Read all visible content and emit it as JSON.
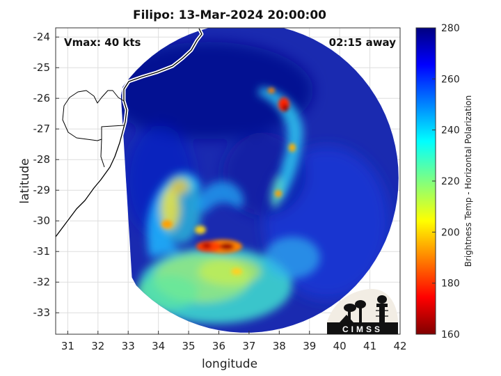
{
  "title": "Filipo: 13-Mar-2024 20:00:00",
  "vmax_label": "Vmax: 40 kts",
  "away_label": "02:15 away",
  "xlabel": "longitude",
  "ylabel": "latitude",
  "colorbar_label": "Brightness Temp - Horizontal Polarization",
  "logo_text": "CIMSS",
  "colors": {
    "frame": "#333333",
    "grid": "#dddddd",
    "coast": "#000000",
    "coast_halo": "#ffffff"
  },
  "chart_data": {
    "type": "heatmap",
    "xlim": [
      30.6,
      42
    ],
    "ylim": [
      -33.7,
      -23.7
    ],
    "x_ticks": [
      31,
      32,
      33,
      34,
      35,
      36,
      37,
      38,
      39,
      40,
      41,
      42
    ],
    "y_ticks": [
      -24,
      -25,
      -26,
      -27,
      -28,
      -29,
      -30,
      -31,
      -32,
      -33
    ],
    "colorbar": {
      "min": 160,
      "max": 280,
      "ticks": [
        160,
        180,
        200,
        220,
        240,
        260,
        280
      ],
      "colormap": "jet-reversed"
    },
    "grid": true,
    "swath": {
      "center_lon": 36.9,
      "center_lat": -28.6,
      "radius_deg": 5.05
    },
    "cold_cores": [
      {
        "lon": 36.2,
        "lat": -30.85,
        "tb": 172
      },
      {
        "lon": 35.6,
        "lat": -30.85,
        "tb": 178
      },
      {
        "lon": 38.1,
        "lat": -26.2,
        "tb": 180
      },
      {
        "lon": 38.3,
        "lat": -27.6,
        "tb": 198
      },
      {
        "lon": 37.9,
        "lat": -29.1,
        "tb": 202
      },
      {
        "lon": 34.3,
        "lat": -30.1,
        "tb": 210
      },
      {
        "lon": 35.8,
        "lat": -31.6,
        "tb": 212
      }
    ]
  }
}
